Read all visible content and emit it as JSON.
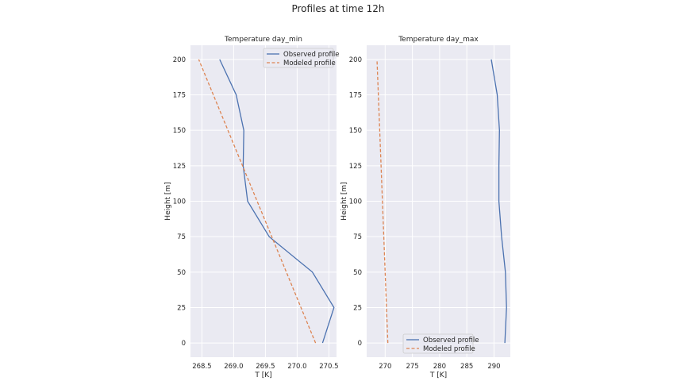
{
  "figure": {
    "suptitle": "Profiles at time 12h"
  },
  "chart_data": [
    {
      "type": "line",
      "title": "Temperature day_min",
      "xlabel": "T [K]",
      "ylabel": "Height [m]",
      "xlim": [
        268.32,
        270.62
      ],
      "ylim": [
        -10,
        210
      ],
      "xticks": [
        "268.5",
        "269.0",
        "269.5",
        "270.0",
        "270.5"
      ],
      "xtick_values": [
        268.5,
        269.0,
        269.5,
        270.0,
        270.5
      ],
      "yticks": [
        "0",
        "25",
        "50",
        "75",
        "100",
        "125",
        "150",
        "175",
        "200"
      ],
      "ytick_values": [
        0,
        25,
        50,
        75,
        100,
        125,
        150,
        175,
        200
      ],
      "grid": true,
      "legend_position": "top-right",
      "series": [
        {
          "name": "Observed profile",
          "color": "#4c72b0",
          "dash": false,
          "points": [
            [
              270.4,
              0
            ],
            [
              270.58,
              25
            ],
            [
              270.24,
              50
            ],
            [
              269.56,
              75
            ],
            [
              269.22,
              100
            ],
            [
              269.15,
              125
            ],
            [
              269.16,
              150
            ],
            [
              269.04,
              175
            ],
            [
              268.78,
              200
            ]
          ]
        },
        {
          "name": "Modeled profile",
          "color": "#dd8452",
          "dash": true,
          "points": [
            [
              270.29,
              0
            ],
            [
              268.45,
              200
            ]
          ]
        }
      ]
    },
    {
      "type": "line",
      "title": "Temperature day_max",
      "xlabel": "T [K]",
      "ylabel": "Height [m]",
      "xlim": [
        266.6,
        293.0
      ],
      "ylim": [
        -10,
        210
      ],
      "xticks": [
        "270",
        "275",
        "280",
        "285",
        "290"
      ],
      "xtick_values": [
        270,
        275,
        280,
        285,
        290
      ],
      "yticks": [
        "0",
        "25",
        "50",
        "75",
        "100",
        "125",
        "150",
        "175",
        "200"
      ],
      "ytick_values": [
        0,
        25,
        50,
        75,
        100,
        125,
        150,
        175,
        200
      ],
      "grid": true,
      "legend_position": "bottom-center",
      "series": [
        {
          "name": "Observed profile",
          "color": "#4c72b0",
          "dash": false,
          "points": [
            [
              292.0,
              0
            ],
            [
              292.3,
              25
            ],
            [
              292.1,
              50
            ],
            [
              291.4,
              75
            ],
            [
              290.9,
              100
            ],
            [
              290.9,
              125
            ],
            [
              291.0,
              150
            ],
            [
              290.6,
              175
            ],
            [
              289.5,
              200
            ]
          ]
        },
        {
          "name": "Modeled profile",
          "color": "#dd8452",
          "dash": true,
          "points": [
            [
              270.5,
              0
            ],
            [
              268.5,
              200
            ]
          ]
        }
      ]
    }
  ]
}
